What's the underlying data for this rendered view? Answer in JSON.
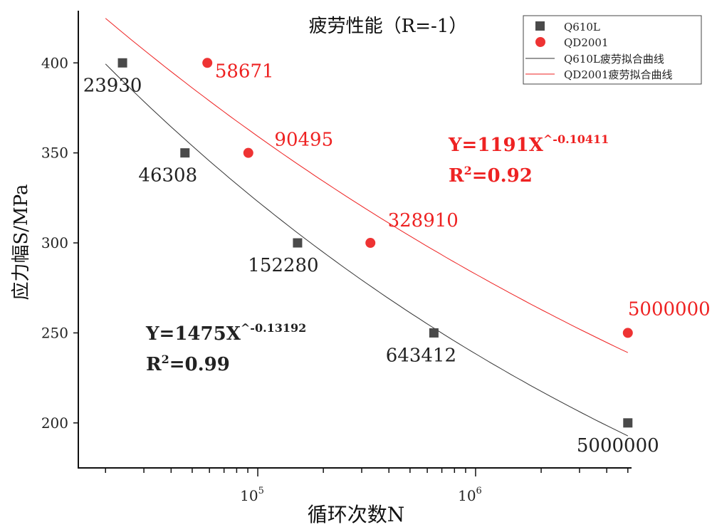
{
  "chart_data": {
    "type": "scatter",
    "title": "疲劳性能（R=-1）",
    "xlabel": "循环次数N",
    "ylabel": "应力幅S/MPa",
    "x_scale": "log",
    "xlim": [
      15000,
      5200000
    ],
    "ylim": [
      175,
      429
    ],
    "x_ticks": [
      {
        "value": 100000,
        "base": "10",
        "exp": "5"
      },
      {
        "value": 1000000,
        "base": "10",
        "exp": "6"
      }
    ],
    "y_ticks": [
      200,
      250,
      300,
      350,
      400
    ],
    "y_tick_labels": [
      "200",
      "250",
      "300",
      "350",
      "400"
    ],
    "grid": false,
    "legend_position": "top-right",
    "series": [
      {
        "name": "Q610L",
        "color": "#4a4a4a",
        "marker": "square",
        "x": [
          23930,
          46308,
          152280,
          643412,
          5000000
        ],
        "y": [
          400,
          350,
          300,
          250,
          200
        ],
        "labels": [
          "23930",
          "46308",
          "152280",
          "643412",
          "5000000"
        ]
      },
      {
        "name": "QD2001",
        "color": "#ee3333",
        "marker": "circle",
        "x": [
          58671,
          90495,
          328910,
          5000000
        ],
        "y": [
          400,
          350,
          300,
          250
        ],
        "labels": [
          "58671",
          "90495",
          "328910",
          "5000000"
        ]
      }
    ],
    "fits": [
      {
        "name": "Q610L疲劳拟合曲线",
        "color": "#333333",
        "a": 1475,
        "b": -0.13192,
        "x_range": [
          20000,
          5000000
        ],
        "eq_main": "Y=1475X",
        "eq_exp": "^-0.13192",
        "r2_prefix": "R",
        "r2_sup": "2",
        "r2_value": "=0.99"
      },
      {
        "name": "QD2001疲劳拟合曲线",
        "color": "#ee2222",
        "a": 1191,
        "b": -0.10411,
        "x_range": [
          20000,
          5000000
        ],
        "eq_main": "Y=1191X",
        "eq_exp": "^-0.10411",
        "r2_prefix": "R",
        "r2_sup": "2",
        "r2_value": "=0.92"
      }
    ]
  }
}
